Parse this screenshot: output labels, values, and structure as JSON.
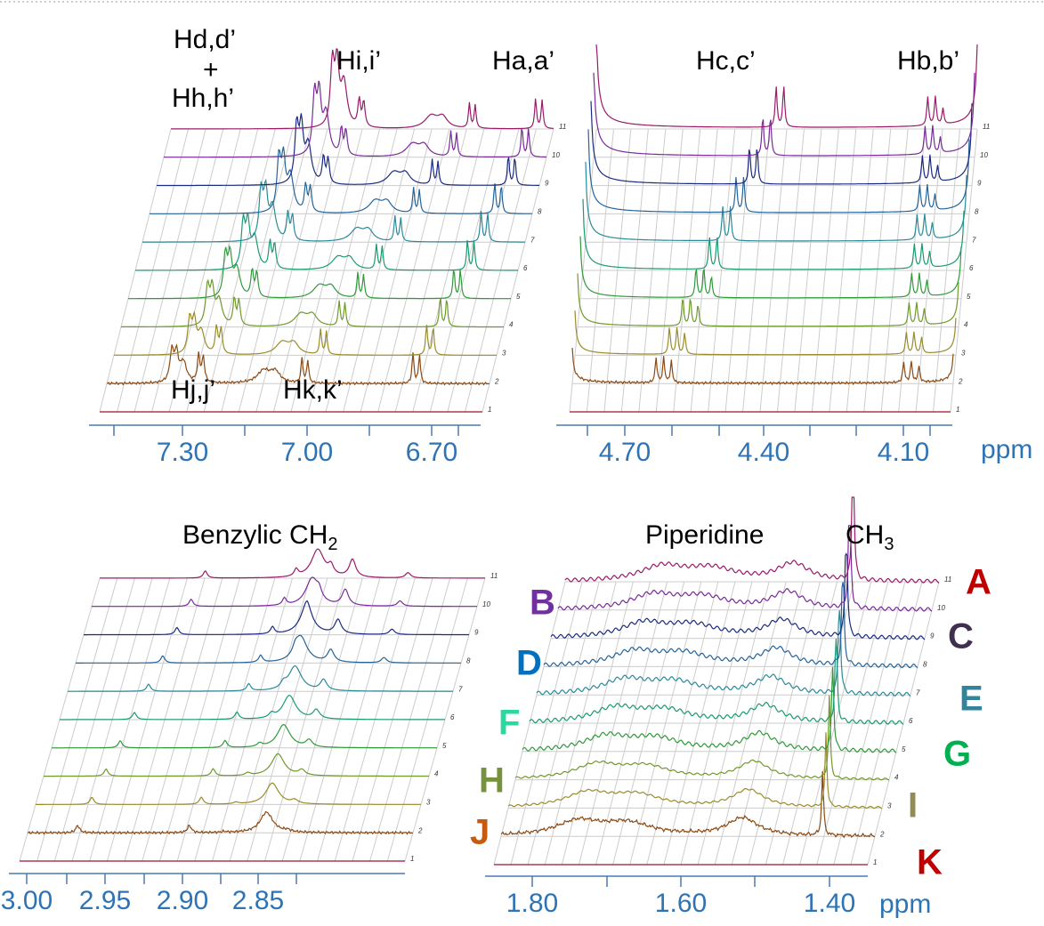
{
  "unit": "ppm",
  "levels": [
    "1",
    "2",
    "3",
    "4",
    "5",
    "6",
    "7",
    "8",
    "9",
    "10",
    "11"
  ],
  "panels": [
    {
      "labels": [
        "Hd,d’",
        "+",
        "Hh,h’",
        "Hi,i’",
        "Ha,a’",
        "Hj,j’",
        "Hk,k’"
      ],
      "ticks": [
        "7.30",
        "7.00",
        "6.70"
      ]
    },
    {
      "labels": [
        "Hc,c’",
        "Hb,b’"
      ],
      "ticks": [
        "4.70",
        "4.40",
        "4.10"
      ]
    },
    {
      "labels": [
        "Benzylic CH",
        "2"
      ],
      "ticks": [
        "3.00",
        "2.95",
        "2.90",
        "2.85"
      ]
    },
    {
      "labels": [
        "Piperidine",
        "CH",
        "3"
      ],
      "ticks": [
        "1.80",
        "1.60",
        "1.40"
      ]
    }
  ],
  "samples": [
    {
      "label": "K",
      "color": "#c00000",
      "trace": "#a01030"
    },
    {
      "label": "J",
      "color": "#c55a11",
      "trace": "#8b4a14"
    },
    {
      "label": "I",
      "color": "#948a54",
      "trace": "#9a8c2a"
    },
    {
      "label": "H",
      "color": "#76923c",
      "trace": "#6e9a2a"
    },
    {
      "label": "G",
      "color": "#00b050",
      "trace": "#2e9a3a"
    },
    {
      "label": "F",
      "color": "#2ad8a0",
      "trace": "#1a9a70"
    },
    {
      "label": "E",
      "color": "#31849b",
      "trace": "#2a8a9a"
    },
    {
      "label": "D",
      "color": "#0070c0",
      "trace": "#24649a"
    },
    {
      "label": "C",
      "color": "#403050",
      "trace": "#1a2a80"
    },
    {
      "label": "B",
      "color": "#7030a0",
      "trace": "#7a2a9a"
    },
    {
      "label": "A",
      "color": "#c00000",
      "trace": "#9a1a6a"
    }
  ]
}
